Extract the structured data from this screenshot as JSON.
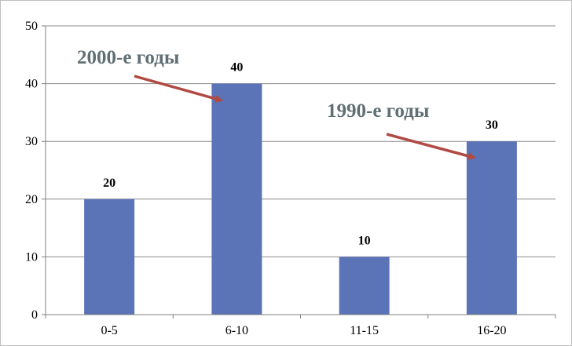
{
  "chart_data": {
    "type": "bar",
    "categories": [
      "0-5",
      "6-10",
      "11-15",
      "16-20"
    ],
    "values": [
      20,
      40,
      10,
      30
    ],
    "data_labels": [
      "20",
      "40",
      "10",
      "30"
    ],
    "title": "",
    "xlabel": "",
    "ylabel": "",
    "ylim": [
      0,
      50
    ],
    "yticks": [
      0,
      10,
      20,
      30,
      40,
      50
    ],
    "grid": true,
    "legend": "none",
    "colors": {
      "bar": "#5b74b8",
      "grid": "#8c8c8c",
      "axis": "#808080",
      "annotation_text": "#5f6f74",
      "arrow": "#b24a44"
    },
    "annotations": [
      {
        "text": "2000-е годы",
        "points_to": "6-10"
      },
      {
        "text": "1990-е годы",
        "points_to": "16-20"
      }
    ]
  }
}
